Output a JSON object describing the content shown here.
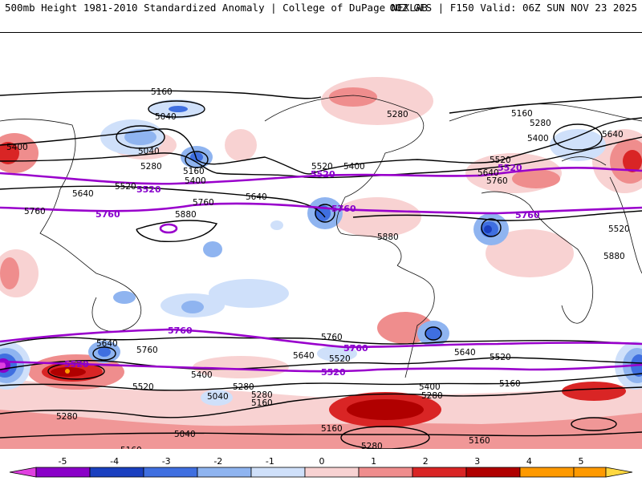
{
  "header": {
    "left_title": "500mb Height 1981-2010 Standardized Anomaly | College of DuPage NEXLAB",
    "right_title": "00Z GFS | F150 Valid: 06Z SUN NOV 23 2025"
  },
  "contour_labels": {
    "black": [
      "5160",
      "5040",
      "5400",
      "5040",
      "5280",
      "5520",
      "5160",
      "5400",
      "5640",
      "5760",
      "5640",
      "5880",
      "5520",
      "5760",
      "5280",
      "5400",
      "5520",
      "5880",
      "5640",
      "5760",
      "5160",
      "5280",
      "5400",
      "5520",
      "5640",
      "5880",
      "5640",
      "5760",
      "5520",
      "5400",
      "5280",
      "5040",
      "5160",
      "5040",
      "5280",
      "5160",
      "5640",
      "5520",
      "5400",
      "5160",
      "5280",
      "5760",
      "5640",
      "5520",
      "5160",
      "5280",
      "5160",
      "5280"
    ],
    "purple": [
      "5520",
      "5760",
      "5520",
      "5760",
      "5520",
      "5760",
      "5760",
      "5520",
      "5760",
      "5520"
    ]
  },
  "colorbar": {
    "ticks": [
      "-5",
      "-4",
      "-3",
      "-2",
      "-1",
      "0",
      "1",
      "2",
      "3",
      "4",
      "5"
    ],
    "colors": {
      "neg_extreme": "#e040e0",
      "neg5": "#8a00c8",
      "neg4": "#1a3fbf",
      "neg3": "#3f6fe0",
      "neg2": "#8fb4f0",
      "neg1": "#cfe0fa",
      "zero": "#ffffff",
      "pos1": "#f8d2d2",
      "pos2": "#ef8d8d",
      "pos3": "#d92525",
      "pos4": "#b00000",
      "pos5": "#ff9a00",
      "pos_extreme": "#ffd840"
    }
  }
}
